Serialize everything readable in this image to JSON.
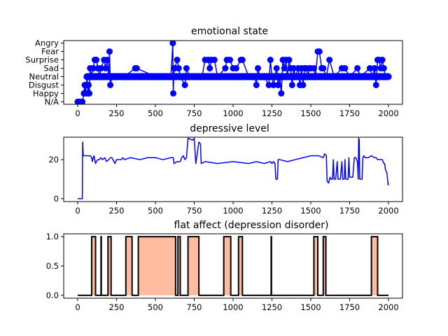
{
  "chart_data": [
    {
      "type": "line",
      "title": "emotional state",
      "style": "line-with-markers",
      "color": "#0000ff",
      "xlim": [
        -90,
        2090
      ],
      "ylim": [
        -0.3,
        7.3
      ],
      "xticks": [
        0,
        250,
        500,
        750,
        1000,
        1250,
        1500,
        1750,
        2000
      ],
      "yticks": [
        0,
        1,
        2,
        3,
        4,
        5,
        6,
        7
      ],
      "ytick_labels": [
        "N/A",
        "Happy",
        "Disgust",
        "Neutral",
        "Sad",
        "Surprise",
        "Fear",
        "Angry"
      ],
      "baseline": 3,
      "points": [
        [
          0,
          0
        ],
        [
          10,
          0
        ],
        [
          20,
          0
        ],
        [
          30,
          0
        ],
        [
          40,
          1
        ],
        [
          45,
          2
        ],
        [
          50,
          1
        ],
        [
          55,
          2
        ],
        [
          60,
          3
        ],
        [
          65,
          1
        ],
        [
          70,
          2
        ],
        [
          75,
          1
        ],
        [
          80,
          4
        ],
        [
          90,
          3
        ],
        [
          100,
          4
        ],
        [
          110,
          5
        ],
        [
          120,
          5
        ],
        [
          130,
          4
        ],
        [
          140,
          3
        ],
        [
          150,
          4
        ],
        [
          170,
          5
        ],
        [
          180,
          4
        ],
        [
          190,
          5
        ],
        [
          200,
          3
        ],
        [
          205,
          6
        ],
        [
          210,
          2
        ],
        [
          220,
          3
        ],
        [
          300,
          3
        ],
        [
          370,
          4
        ],
        [
          380,
          4
        ],
        [
          500,
          3
        ],
        [
          600,
          3
        ],
        [
          612,
          7
        ],
        [
          615,
          1
        ],
        [
          620,
          4
        ],
        [
          625,
          4
        ],
        [
          640,
          5
        ],
        [
          650,
          4
        ],
        [
          660,
          3
        ],
        [
          690,
          2
        ],
        [
          700,
          4
        ],
        [
          720,
          3
        ],
        [
          800,
          3
        ],
        [
          820,
          5
        ],
        [
          840,
          5
        ],
        [
          850,
          4
        ],
        [
          860,
          5
        ],
        [
          880,
          5
        ],
        [
          900,
          3
        ],
        [
          950,
          4
        ],
        [
          960,
          5
        ],
        [
          980,
          5
        ],
        [
          1000,
          4
        ],
        [
          1020,
          4
        ],
        [
          1050,
          5
        ],
        [
          1060,
          5
        ],
        [
          1100,
          3
        ],
        [
          1140,
          3
        ],
        [
          1150,
          2
        ],
        [
          1160,
          4
        ],
        [
          1170,
          3
        ],
        [
          1200,
          3
        ],
        [
          1230,
          2
        ],
        [
          1240,
          5
        ],
        [
          1250,
          3
        ],
        [
          1260,
          2
        ],
        [
          1270,
          3
        ],
        [
          1280,
          4
        ],
        [
          1290,
          2
        ],
        [
          1300,
          3
        ],
        [
          1310,
          1
        ],
        [
          1320,
          5
        ],
        [
          1330,
          4
        ],
        [
          1340,
          5
        ],
        [
          1350,
          3
        ],
        [
          1360,
          5
        ],
        [
          1370,
          4
        ],
        [
          1380,
          2
        ],
        [
          1390,
          4
        ],
        [
          1400,
          3
        ],
        [
          1420,
          4
        ],
        [
          1430,
          2
        ],
        [
          1440,
          4
        ],
        [
          1450,
          2
        ],
        [
          1460,
          4
        ],
        [
          1470,
          4
        ],
        [
          1480,
          3
        ],
        [
          1490,
          4
        ],
        [
          1500,
          4
        ],
        [
          1520,
          4
        ],
        [
          1530,
          3
        ],
        [
          1545,
          6
        ],
        [
          1555,
          6
        ],
        [
          1570,
          4
        ],
        [
          1580,
          4
        ],
        [
          1600,
          3
        ],
        [
          1620,
          5
        ],
        [
          1650,
          3
        ],
        [
          1700,
          4
        ],
        [
          1720,
          4
        ],
        [
          1750,
          3
        ],
        [
          1800,
          4
        ],
        [
          1820,
          3
        ],
        [
          1880,
          4
        ],
        [
          1900,
          3
        ],
        [
          1910,
          4
        ],
        [
          1920,
          2
        ],
        [
          1930,
          5
        ],
        [
          1940,
          5
        ],
        [
          1950,
          4
        ],
        [
          1960,
          5
        ],
        [
          1970,
          4
        ],
        [
          1980,
          3
        ],
        [
          1990,
          3
        ],
        [
          2000,
          3
        ]
      ]
    },
    {
      "type": "line",
      "title": "depressive level",
      "color": "#0000ff",
      "xlim": [
        -90,
        2090
      ],
      "ylim": [
        -1.5,
        31.5
      ],
      "xticks": [
        0,
        250,
        500,
        750,
        1000,
        1250,
        1500,
        1750,
        2000
      ],
      "yticks": [
        0,
        20
      ],
      "points": [
        [
          0,
          0
        ],
        [
          30,
          0
        ],
        [
          32,
          29
        ],
        [
          36,
          22
        ],
        [
          80,
          22
        ],
        [
          90,
          21
        ],
        [
          95,
          19
        ],
        [
          100,
          21
        ],
        [
          105,
          22
        ],
        [
          110,
          20
        ],
        [
          115,
          18
        ],
        [
          120,
          19
        ],
        [
          130,
          20
        ],
        [
          140,
          20
        ],
        [
          150,
          21
        ],
        [
          160,
          20
        ],
        [
          175,
          21
        ],
        [
          185,
          19
        ],
        [
          200,
          20
        ],
        [
          210,
          21
        ],
        [
          220,
          21
        ],
        [
          240,
          18
        ],
        [
          250,
          20
        ],
        [
          280,
          20
        ],
        [
          290,
          21
        ],
        [
          300,
          20
        ],
        [
          340,
          21
        ],
        [
          400,
          20
        ],
        [
          450,
          21
        ],
        [
          500,
          21
        ],
        [
          550,
          20
        ],
        [
          600,
          21
        ],
        [
          615,
          21
        ],
        [
          620,
          18
        ],
        [
          640,
          19
        ],
        [
          660,
          19
        ],
        [
          670,
          21
        ],
        [
          680,
          22
        ],
        [
          690,
          20
        ],
        [
          700,
          21
        ],
        [
          710,
          31
        ],
        [
          740,
          30
        ],
        [
          750,
          31
        ],
        [
          760,
          18
        ],
        [
          780,
          29
        ],
        [
          790,
          28
        ],
        [
          795,
          18
        ],
        [
          820,
          19
        ],
        [
          900,
          18
        ],
        [
          1000,
          19
        ],
        [
          1100,
          18
        ],
        [
          1150,
          19
        ],
        [
          1200,
          18
        ],
        [
          1240,
          19
        ],
        [
          1250,
          18
        ],
        [
          1260,
          19
        ],
        [
          1270,
          18
        ],
        [
          1275,
          10
        ],
        [
          1285,
          10
        ],
        [
          1290,
          20
        ],
        [
          1300,
          20
        ],
        [
          1350,
          19
        ],
        [
          1400,
          20
        ],
        [
          1450,
          21
        ],
        [
          1500,
          22
        ],
        [
          1550,
          22
        ],
        [
          1580,
          21
        ],
        [
          1590,
          23
        ],
        [
          1600,
          22
        ],
        [
          1605,
          9
        ],
        [
          1615,
          8
        ],
        [
          1620,
          10
        ],
        [
          1625,
          11
        ],
        [
          1630,
          10
        ],
        [
          1640,
          10
        ],
        [
          1645,
          20
        ],
        [
          1650,
          10
        ],
        [
          1660,
          10
        ],
        [
          1670,
          19
        ],
        [
          1675,
          10
        ],
        [
          1690,
          10
        ],
        [
          1700,
          19
        ],
        [
          1705,
          10
        ],
        [
          1715,
          10
        ],
        [
          1720,
          20
        ],
        [
          1725,
          10
        ],
        [
          1740,
          10
        ],
        [
          1745,
          21
        ],
        [
          1750,
          11
        ],
        [
          1770,
          11
        ],
        [
          1780,
          21
        ],
        [
          1790,
          21
        ],
        [
          1800,
          19
        ],
        [
          1805,
          10
        ],
        [
          1808,
          31
        ],
        [
          1812,
          30
        ],
        [
          1815,
          10
        ],
        [
          1830,
          10
        ],
        [
          1835,
          21
        ],
        [
          1840,
          22
        ],
        [
          1850,
          21
        ],
        [
          1870,
          21
        ],
        [
          1890,
          22
        ],
        [
          1910,
          21
        ],
        [
          1920,
          21
        ],
        [
          1930,
          20
        ],
        [
          1960,
          20
        ],
        [
          1970,
          18
        ],
        [
          1975,
          18
        ],
        [
          1980,
          15
        ],
        [
          1990,
          13
        ],
        [
          1995,
          9
        ],
        [
          1998,
          7
        ],
        [
          2000,
          8
        ]
      ]
    },
    {
      "type": "area",
      "title": "flat affect (depression disorder)",
      "line_color": "#000000",
      "fill_color": "#ffbba0",
      "xlim": [
        -90,
        2090
      ],
      "ylim": [
        -0.05,
        1.05
      ],
      "xticks": [
        0,
        250,
        500,
        750,
        1000,
        1250,
        1500,
        1750,
        2000
      ],
      "yticks": [
        0.0,
        0.5,
        1.0
      ],
      "ytick_labels": [
        "0.0",
        "0.5",
        "1.0"
      ],
      "intervals": [
        [
          90,
          115
        ],
        [
          150,
          152
        ],
        [
          195,
          215
        ],
        [
          310,
          350
        ],
        [
          390,
          630
        ],
        [
          645,
          660
        ],
        [
          710,
          780
        ],
        [
          940,
          985
        ],
        [
          1035,
          1060
        ],
        [
          1245,
          1247
        ],
        [
          1520,
          1545
        ],
        [
          1580,
          1597
        ],
        [
          1890,
          1930
        ]
      ]
    }
  ]
}
